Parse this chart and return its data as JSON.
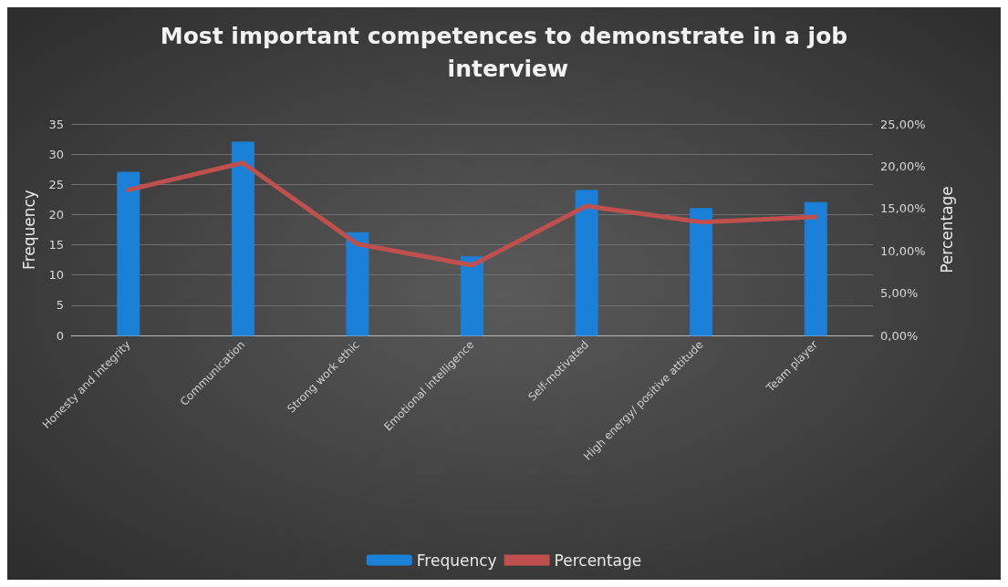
{
  "chart_data": {
    "type": "bar",
    "title": "Most important competences to demonstrate in a job interview",
    "categories": [
      "Honesty and integrity",
      "Communication",
      "Strong work ethic",
      "Emotional intelligence",
      "Self-motivated",
      "High energy/ positive attitude",
      "Team player"
    ],
    "series": [
      {
        "name": "Frequency",
        "color": "#1a80d8",
        "values": [
          27,
          32,
          17,
          13,
          24,
          21,
          22
        ]
      },
      {
        "name": "Percentage",
        "type": "line",
        "axis": "y2",
        "color": "#c0504d",
        "values": [
          17.2,
          20.4,
          10.8,
          8.3,
          15.3,
          13.4,
          14.0
        ]
      }
    ],
    "ylabel": "Frequency",
    "y2label": "Percentage",
    "ylim": [
      0,
      35
    ],
    "yticks": [
      0,
      5,
      10,
      15,
      20,
      25,
      30,
      35
    ],
    "y2lim": [
      0,
      25
    ],
    "y2ticks": [
      {
        "value": 0,
        "label": "0,00%"
      },
      {
        "value": 5,
        "label": "5,00%"
      },
      {
        "value": 10,
        "label": "10,00%"
      },
      {
        "value": 15,
        "label": "15,00%"
      },
      {
        "value": 20,
        "label": "20,00%"
      },
      {
        "value": 25,
        "label": "25,00%"
      }
    ],
    "grid": "y",
    "legend": "bottom",
    "marker": "none",
    "line_style": "solid"
  }
}
